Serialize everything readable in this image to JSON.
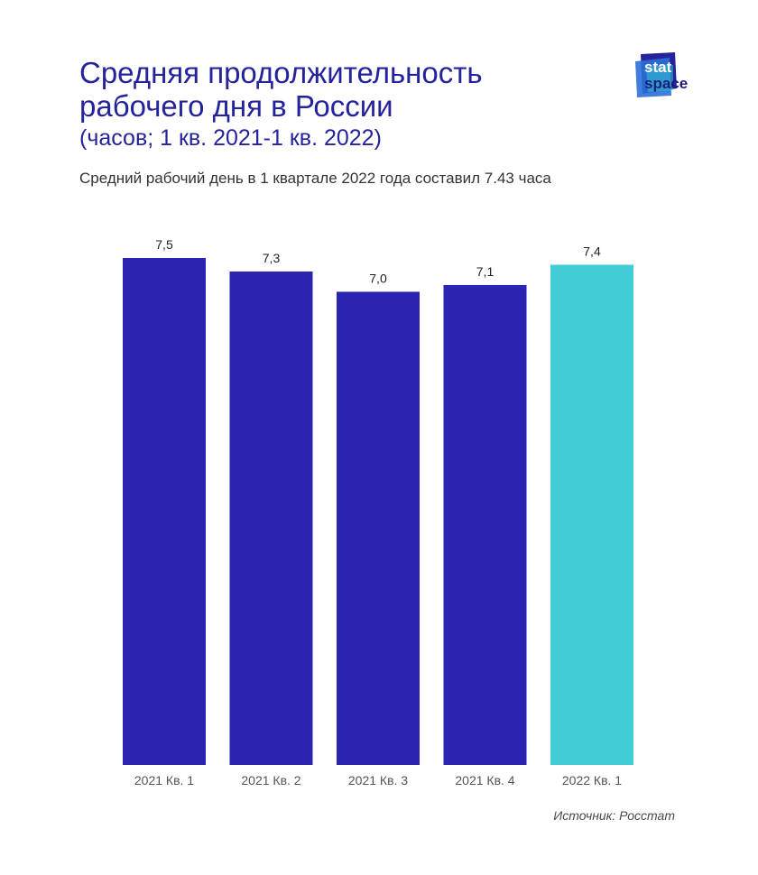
{
  "header": {
    "title_line1": "Средняя продолжительность",
    "title_line2": "рабочего дня в России",
    "subtitle": "(часов; 1 кв. 2021-1 кв. 2022)",
    "caption": "Средний рабочий день в 1 квартале 2022 года составил 7.43 часа"
  },
  "logo": {
    "word1": "stat",
    "word2": "space",
    "colors": [
      "#25239c",
      "#2c6fd6",
      "#2fc7d0"
    ]
  },
  "source": "Источник: Росстат",
  "colors": {
    "primary": "#2a24b0",
    "highlight": "#42ccd6",
    "title": "#25239c"
  },
  "chart_data": {
    "type": "bar",
    "title": "Средняя продолжительность рабочего дня в России",
    "subtitle": "(часов; 1 кв. 2021-1 кв. 2022)",
    "categories": [
      "2021 Кв. 1",
      "2021 Кв. 2",
      "2021 Кв. 3",
      "2021 Кв. 4",
      "2022 Кв. 1"
    ],
    "values": [
      7.5,
      7.3,
      7.0,
      7.1,
      7.4
    ],
    "value_labels": [
      "7,5",
      "7,3",
      "7,0",
      "7,1",
      "7,4"
    ],
    "bar_colors": [
      "#2a24b0",
      "#2a24b0",
      "#2a24b0",
      "#2a24b0",
      "#42ccd6"
    ],
    "highlighted_category": "2022 Кв. 1",
    "xlabel": "",
    "ylabel": "",
    "ylim": [
      0,
      7.5
    ],
    "grid": false,
    "legend": "none"
  }
}
